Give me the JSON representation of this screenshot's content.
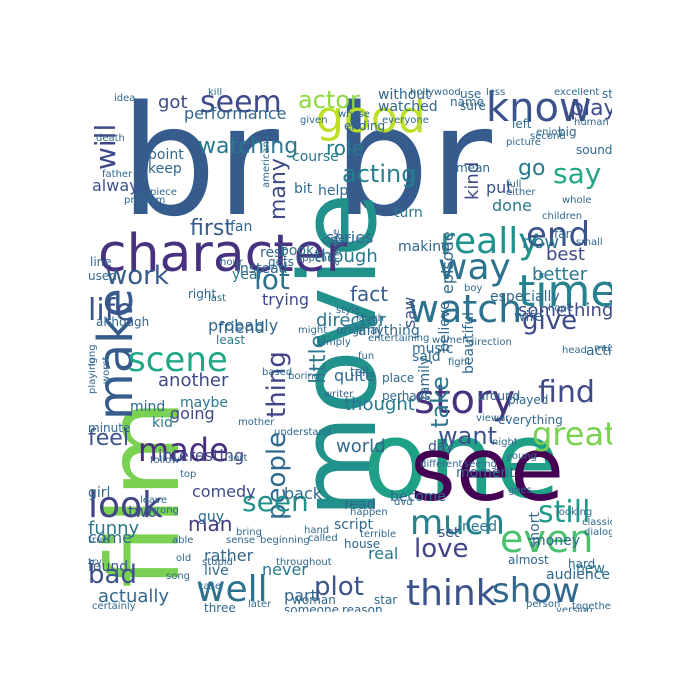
{
  "wordcloud": {
    "palette": {
      "dark_purple": "#440154",
      "indigo": "#46327e",
      "slate_blue": "#365c8d",
      "steel_blue": "#277f8e",
      "teal": "#21918c",
      "green_teal": "#1fa187",
      "green": "#4ac16d",
      "lime": "#a0da39",
      "yellow": "#fde725"
    },
    "words": [
      {
        "text": "br",
        "color": "#365c8d"
      },
      {
        "text": "br",
        "color": "#365c8d"
      },
      {
        "text": "movie",
        "color": "#21918c"
      },
      {
        "text": "film",
        "color": "#7ad151"
      },
      {
        "text": "one",
        "color": "#1fa187"
      },
      {
        "text": "see",
        "color": "#440154"
      },
      {
        "text": "character",
        "color": "#46327e"
      },
      {
        "text": "good",
        "color": "#bddf26"
      },
      {
        "text": "know",
        "color": "#3b528b"
      },
      {
        "text": "make",
        "color": "#365c8d"
      },
      {
        "text": "story",
        "color": "#46327e"
      },
      {
        "text": "time",
        "color": "#26828e"
      },
      {
        "text": "watch",
        "color": "#2c728e"
      },
      {
        "text": "scene",
        "color": "#22a884"
      },
      {
        "text": "even",
        "color": "#4ac16d"
      },
      {
        "text": "think",
        "color": "#3b528b"
      },
      {
        "text": "show",
        "color": "#31688e"
      },
      {
        "text": "well",
        "color": "#2c728e"
      },
      {
        "text": "look",
        "color": "#414487"
      },
      {
        "text": "made",
        "color": "#472d7b"
      },
      {
        "text": "much",
        "color": "#26828e"
      },
      {
        "text": "really",
        "color": "#21918c"
      },
      {
        "text": "way",
        "color": "#2c728e"
      },
      {
        "text": "end",
        "color": "#3b528b"
      },
      {
        "text": "great",
        "color": "#7ad151"
      },
      {
        "text": "people",
        "color": "#31688e"
      },
      {
        "text": "thing",
        "color": "#414487"
      },
      {
        "text": "life",
        "color": "#3b528b"
      },
      {
        "text": "lot",
        "color": "#2c728e"
      },
      {
        "text": "work",
        "color": "#38598c"
      },
      {
        "text": "still",
        "color": "#1e9b8a"
      },
      {
        "text": "seen",
        "color": "#21918c"
      },
      {
        "text": "love",
        "color": "#414487"
      },
      {
        "text": "plot",
        "color": "#3b528b"
      },
      {
        "text": "find",
        "color": "#3e4a89"
      },
      {
        "text": "give",
        "color": "#3e4989"
      },
      {
        "text": "say",
        "color": "#22a884"
      },
      {
        "text": "take",
        "color": "#2a788e"
      },
      {
        "text": "seem",
        "color": "#3e4989"
      },
      {
        "text": "will",
        "color": "#3f4788"
      },
      {
        "text": "little",
        "color": "#2a788e"
      },
      {
        "text": "acting",
        "color": "#277f8e"
      },
      {
        "text": "actor",
        "color": "#8fd744"
      },
      {
        "text": "first",
        "color": "#38598c"
      },
      {
        "text": "bad",
        "color": "#3b528b"
      },
      {
        "text": "want",
        "color": "#3b528b"
      },
      {
        "text": "go",
        "color": "#2a788e"
      },
      {
        "text": "play",
        "color": "#3e4a89"
      },
      {
        "text": "watching",
        "color": "#2a788e"
      },
      {
        "text": "many",
        "color": "#3e4989"
      },
      {
        "text": "got",
        "color": "#3e4989"
      },
      {
        "text": "fact",
        "color": "#365c8d"
      },
      {
        "text": "better",
        "color": "#2a788e"
      },
      {
        "text": "best",
        "color": "#3e4a89"
      },
      {
        "text": "something",
        "color": "#3e4989"
      },
      {
        "text": "role",
        "color": "#2a788e"
      },
      {
        "text": "kind",
        "color": "#3e4989"
      },
      {
        "text": "now",
        "color": "#2a788e"
      },
      {
        "text": "feel",
        "color": "#3b528b"
      },
      {
        "text": "man",
        "color": "#443a83"
      },
      {
        "text": "world",
        "color": "#31688e"
      },
      {
        "text": "thought",
        "color": "#2a788e"
      },
      {
        "text": "director",
        "color": "#2a788e"
      },
      {
        "text": "probably",
        "color": "#31688e"
      },
      {
        "text": "another",
        "color": "#3e4989"
      },
      {
        "text": "going",
        "color": "#3e4989"
      },
      {
        "text": "interesting",
        "color": "#3e4989"
      },
      {
        "text": "funny",
        "color": "#2a788e"
      },
      {
        "text": "comedy",
        "color": "#3e4a89"
      },
      {
        "text": "actually",
        "color": "#31688e"
      },
      {
        "text": "performance",
        "color": "#31688e"
      },
      {
        "text": "always",
        "color": "#3b528b"
      },
      {
        "text": "though",
        "color": "#2a788e"
      },
      {
        "text": "series",
        "color": "#31688e"
      },
      {
        "text": "nothing",
        "color": "#3e4989"
      },
      {
        "text": "episode",
        "color": "#31688e"
      },
      {
        "text": "done",
        "color": "#2a788e"
      },
      {
        "text": "put",
        "color": "#3b528b"
      },
      {
        "text": "year",
        "color": "#2a788e"
      },
      {
        "text": "quite",
        "color": "#31688e"
      },
      {
        "text": "trying",
        "color": "#3e4989"
      },
      {
        "text": "friend",
        "color": "#31688e"
      },
      {
        "text": "back",
        "color": "#31688e"
      },
      {
        "text": "two",
        "color": "#3b528b"
      },
      {
        "text": "come",
        "color": "#31688e"
      },
      {
        "text": "guy",
        "color": "#31688e"
      },
      {
        "text": "never",
        "color": "#2a788e"
      },
      {
        "text": "rather",
        "color": "#31688e"
      },
      {
        "text": "found",
        "color": "#3b528b"
      },
      {
        "text": "part",
        "color": "#31688e"
      },
      {
        "text": "real",
        "color": "#2a788e"
      },
      {
        "text": "music",
        "color": "#31688e"
      },
      {
        "text": "saw",
        "color": "#3b528b"
      },
      {
        "text": "point",
        "color": "#31688e"
      },
      {
        "text": "keep",
        "color": "#31688e"
      },
      {
        "text": "course",
        "color": "#2a788e"
      },
      {
        "text": "bit",
        "color": "#31688e"
      },
      {
        "text": "help",
        "color": "#31688e"
      },
      {
        "text": "set",
        "color": "#3b528b"
      },
      {
        "text": "day",
        "color": "#3b528b"
      },
      {
        "text": "fan",
        "color": "#31688e"
      },
      {
        "text": "book",
        "color": "#2a788e"
      },
      {
        "text": "rest",
        "color": "#31688e"
      },
      {
        "text": "cast",
        "color": "#31688e"
      },
      {
        "text": "turn",
        "color": "#2a788e"
      },
      {
        "text": "making",
        "color": "#31688e"
      },
      {
        "text": "especially",
        "color": "#31688e"
      },
      {
        "text": "need",
        "color": "#2a788e"
      },
      {
        "text": "moment",
        "color": "#31688e"
      },
      {
        "text": "believe",
        "color": "#31688e"
      },
      {
        "text": "action",
        "color": "#31688e"
      },
      {
        "text": "family",
        "color": "#31688e"
      },
      {
        "text": "beautiful",
        "color": "#31688e"
      },
      {
        "text": "said",
        "color": "#31688e"
      },
      {
        "text": "wife",
        "color": "#31688e"
      },
      {
        "text": "audience",
        "color": "#31688e"
      },
      {
        "text": "new",
        "color": "#2a788e"
      },
      {
        "text": "short",
        "color": "#31688e"
      },
      {
        "text": "script",
        "color": "#31688e"
      },
      {
        "text": "become",
        "color": "#31688e"
      },
      {
        "text": "read",
        "color": "#31688e"
      },
      {
        "text": "money",
        "color": "#31688e"
      },
      {
        "text": "live",
        "color": "#31688e"
      },
      {
        "text": "kid",
        "color": "#2a788e"
      },
      {
        "text": "girl",
        "color": "#31688e"
      },
      {
        "text": "mind",
        "color": "#31688e"
      },
      {
        "text": "maybe",
        "color": "#2a788e"
      },
      {
        "text": "used",
        "color": "#31688e"
      },
      {
        "text": "line",
        "color": "#31688e"
      },
      {
        "text": "although",
        "color": "#31688e"
      },
      {
        "text": "right",
        "color": "#31688e"
      },
      {
        "text": "minute",
        "color": "#31688e"
      },
      {
        "text": "instead",
        "color": "#31688e"
      },
      {
        "text": "least",
        "color": "#2a788e"
      },
      {
        "text": "gets",
        "color": "#31688e"
      },
      {
        "text": "without",
        "color": "#31688e"
      },
      {
        "text": "watched",
        "color": "#31688e"
      },
      {
        "text": "ending",
        "color": "#31688e"
      },
      {
        "text": "original",
        "color": "#31688e"
      },
      {
        "text": "anything",
        "color": "#31688e"
      },
      {
        "text": "tell",
        "color": "#31688e"
      },
      {
        "text": "place",
        "color": "#31688e"
      },
      {
        "text": "perhaps",
        "color": "#31688e"
      },
      {
        "text": "around",
        "color": "#31688e"
      },
      {
        "text": "played",
        "color": "#31688e"
      },
      {
        "text": "everything",
        "color": "#31688e"
      },
      {
        "text": "hard",
        "color": "#31688e"
      },
      {
        "text": "sure",
        "color": "#31688e"
      },
      {
        "text": "use",
        "color": "#31688e"
      },
      {
        "text": "name",
        "color": "#31688e"
      },
      {
        "text": "yet",
        "color": "#31688e"
      },
      {
        "text": "start",
        "color": "#31688e"
      },
      {
        "text": "sound",
        "color": "#31688e"
      },
      {
        "text": "big",
        "color": "#31688e"
      },
      {
        "text": "left",
        "color": "#31688e"
      },
      {
        "text": "far",
        "color": "#31688e"
      },
      {
        "text": "mean",
        "color": "#31688e"
      },
      {
        "text": "almost",
        "color": "#31688e"
      },
      {
        "text": "house",
        "color": "#31688e"
      },
      {
        "text": "three",
        "color": "#31688e"
      },
      {
        "text": "someone",
        "color": "#31688e"
      },
      {
        "text": "reason",
        "color": "#31688e"
      },
      {
        "text": "woman",
        "color": "#31688e"
      },
      {
        "text": "star",
        "color": "#31688e"
      },
      {
        "text": "idea",
        "color": "#31688e"
      },
      {
        "text": "death",
        "color": "#31688e"
      },
      {
        "text": "piece",
        "color": "#31688e"
      },
      {
        "text": "problem",
        "color": "#31688e"
      },
      {
        "text": "father",
        "color": "#31688e"
      },
      {
        "text": "anyone",
        "color": "#31688e"
      },
      {
        "text": "fun",
        "color": "#31688e"
      },
      {
        "text": "dvd",
        "color": "#31688e"
      },
      {
        "text": "boring",
        "color": "#31688e"
      },
      {
        "text": "everyone",
        "color": "#31688e"
      },
      {
        "text": "picture",
        "color": "#31688e"
      },
      {
        "text": "either",
        "color": "#31688e"
      },
      {
        "text": "second",
        "color": "#31688e"
      },
      {
        "text": "less",
        "color": "#31688e"
      },
      {
        "text": "might",
        "color": "#31688e"
      },
      {
        "text": "given",
        "color": "#31688e"
      },
      {
        "text": "american",
        "color": "#31688e"
      },
      {
        "text": "simply",
        "color": "#31688e"
      },
      {
        "text": "hollywood",
        "color": "#31688e"
      },
      {
        "text": "person",
        "color": "#31688e"
      },
      {
        "text": "version",
        "color": "#31688e"
      },
      {
        "text": "together",
        "color": "#31688e"
      },
      {
        "text": "certainly",
        "color": "#31688e"
      },
      {
        "text": "wrong",
        "color": "#31688e"
      },
      {
        "text": "mother",
        "color": "#31688e"
      },
      {
        "text": "based",
        "color": "#31688e"
      },
      {
        "text": "terrible",
        "color": "#31688e"
      },
      {
        "text": "seeing",
        "color": "#31688e"
      },
      {
        "text": "young",
        "color": "#31688e"
      },
      {
        "text": "different",
        "color": "#31688e"
      },
      {
        "text": "hope",
        "color": "#31688e"
      },
      {
        "text": "enjoy",
        "color": "#31688e"
      },
      {
        "text": "excellent",
        "color": "#31688e"
      },
      {
        "text": "human",
        "color": "#31688e"
      },
      {
        "text": "whole",
        "color": "#31688e"
      },
      {
        "text": "dialogue",
        "color": "#31688e"
      },
      {
        "text": "classic",
        "color": "#31688e"
      },
      {
        "text": "looking",
        "color": "#31688e"
      },
      {
        "text": "true",
        "color": "#31688e"
      },
      {
        "text": "stupid",
        "color": "#31688e"
      },
      {
        "text": "later",
        "color": "#31688e"
      },
      {
        "text": "old",
        "color": "#31688e"
      },
      {
        "text": "sense",
        "color": "#31688e"
      },
      {
        "text": "song",
        "color": "#31688e"
      },
      {
        "text": "sort",
        "color": "#31688e"
      },
      {
        "text": "bring",
        "color": "#31688e"
      },
      {
        "text": "hand",
        "color": "#31688e"
      },
      {
        "text": "laugh",
        "color": "#31688e"
      },
      {
        "text": "happen",
        "color": "#31688e"
      },
      {
        "text": "head",
        "color": "#31688e"
      },
      {
        "text": "small",
        "color": "#31688e"
      },
      {
        "text": "children",
        "color": "#31688e"
      },
      {
        "text": "must",
        "color": "#31688e"
      },
      {
        "text": "viewer",
        "color": "#31688e"
      },
      {
        "text": "understand",
        "color": "#31688e"
      },
      {
        "text": "kill",
        "color": "#31688e"
      },
      {
        "text": "direction",
        "color": "#31688e"
      },
      {
        "text": "fight",
        "color": "#31688e"
      },
      {
        "text": "whose",
        "color": "#31688e"
      },
      {
        "text": "last",
        "color": "#31688e"
      },
      {
        "text": "long",
        "color": "#31688e"
      },
      {
        "text": "playing",
        "color": "#31688e"
      },
      {
        "text": "worst",
        "color": "#31688e"
      },
      {
        "text": "full",
        "color": "#31688e"
      },
      {
        "text": "night",
        "color": "#31688e"
      },
      {
        "text": "goes",
        "color": "#31688e"
      },
      {
        "text": "boy",
        "color": "#31688e"
      },
      {
        "text": "try",
        "color": "#31688e"
      },
      {
        "text": "case",
        "color": "#31688e"
      },
      {
        "text": "able",
        "color": "#31688e"
      },
      {
        "text": "beginning",
        "color": "#31688e"
      },
      {
        "text": "throughout",
        "color": "#31688e"
      },
      {
        "text": "entertaining",
        "color": "#31688e"
      },
      {
        "text": "leave",
        "color": "#31688e"
      },
      {
        "text": "top",
        "color": "#31688e"
      },
      {
        "text": "follow",
        "color": "#31688e"
      },
      {
        "text": "called",
        "color": "#31688e"
      },
      {
        "text": "writer",
        "color": "#31688e"
      },
      {
        "text": "style",
        "color": "#31688e"
      },
      {
        "text": "appear",
        "color": "#31688e"
      },
      {
        "text": "hour",
        "color": "#31688e"
      },
      {
        "text": "women",
        "color": "#31688e"
      },
      {
        "text": "despite",
        "color": "#31688e"
      },
      {
        "text": "comment",
        "color": "#31688e"
      },
      {
        "text": "remember",
        "color": "#31688e"
      },
      {
        "text": "perfect",
        "color": "#31688e"
      },
      {
        "text": "wonderful",
        "color": "#31688e"
      },
      {
        "text": "attempt",
        "color": "#31688e"
      },
      {
        "text": "care",
        "color": "#31688e"
      },
      {
        "text": "pretty",
        "color": "#31688e"
      },
      {
        "text": "wait",
        "color": "#31688e"
      },
      {
        "text": "friend",
        "color": "#31688e"
      },
      {
        "text": "often",
        "color": "#31688e"
      }
    ]
  }
}
